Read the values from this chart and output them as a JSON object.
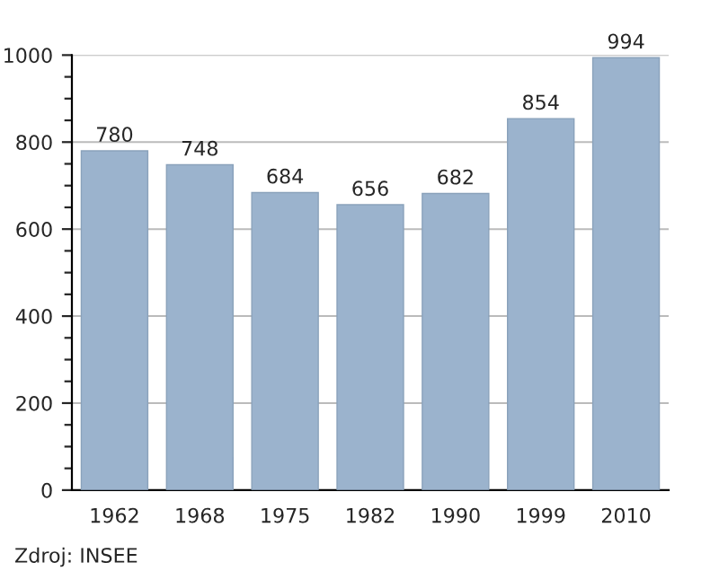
{
  "chart_data": {
    "type": "bar",
    "categories": [
      "1962",
      "1968",
      "1975",
      "1982",
      "1990",
      "1999",
      "2010"
    ],
    "values": [
      780,
      748,
      684,
      656,
      682,
      854,
      994
    ],
    "color": "#9bb3cd",
    "ylim": [
      0,
      1000
    ],
    "yticks": [
      0,
      200,
      400,
      600,
      800,
      1000
    ],
    "grid": "y",
    "data_labels": true,
    "annotations": [
      "Zdroj: INSEE"
    ]
  }
}
